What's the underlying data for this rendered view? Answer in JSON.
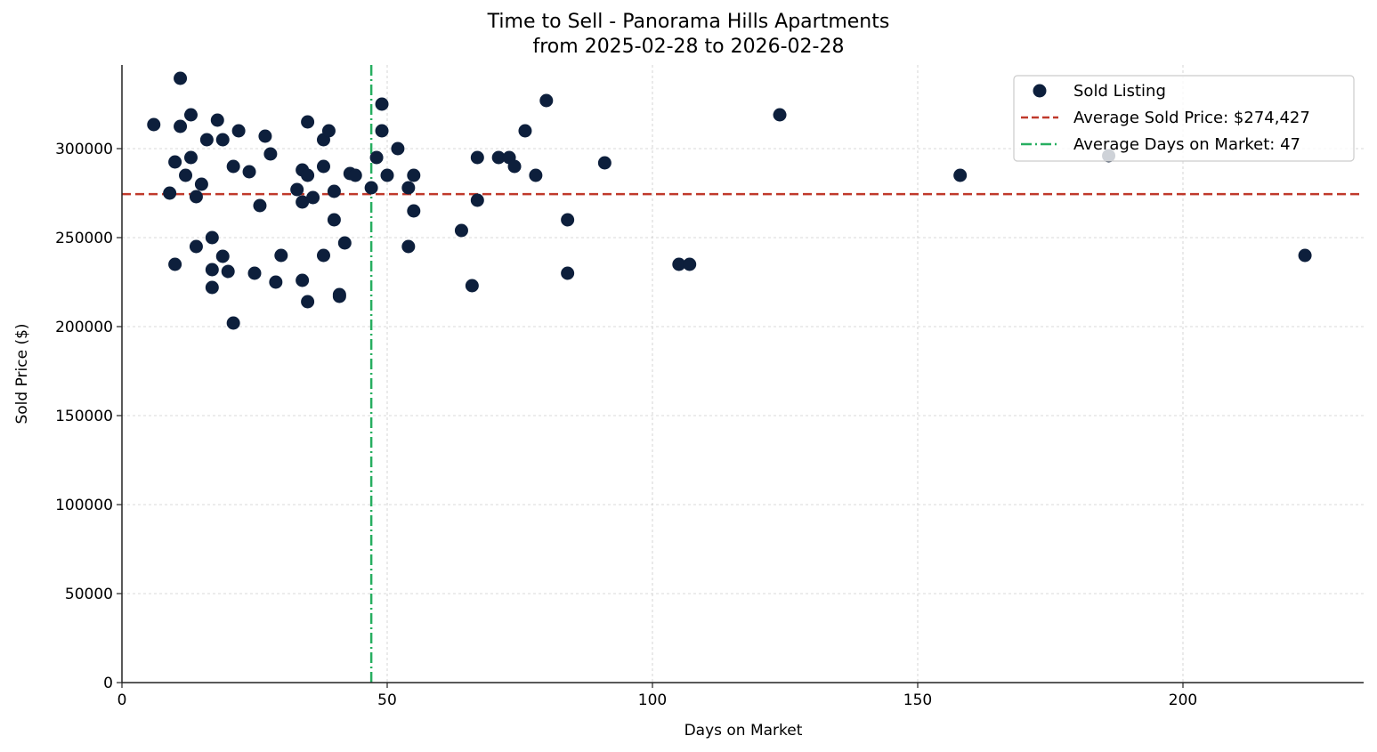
{
  "chart_data": {
    "type": "scatter",
    "title": "Time to Sell - Panorama Hills Apartments",
    "subtitle": "from 2025-02-28 to 2026-02-28",
    "xlabel": "Days on Market",
    "ylabel": "Sold Price ($)",
    "xlim": [
      0,
      234
    ],
    "ylim": [
      0,
      347000
    ],
    "xticks": [
      0,
      50,
      100,
      150,
      200
    ],
    "yticks": [
      0,
      50000,
      100000,
      150000,
      200000,
      250000,
      300000
    ],
    "grid": true,
    "legend_position": "upper right",
    "legend": [
      {
        "label": "Sold Listing",
        "type": "marker",
        "color": "#0d1f3c"
      },
      {
        "label": "Average Sold Price: $274,427",
        "type": "dashed",
        "color": "#c0392b"
      },
      {
        "label": "Average Days on Market: 47",
        "type": "dashdot",
        "color": "#27ae60"
      }
    ],
    "average_price": 274427,
    "average_days": 47,
    "series": [
      {
        "name": "Sold Listing",
        "color": "#0d1f3c",
        "points": [
          [
            6,
            313500
          ],
          [
            9,
            275000
          ],
          [
            10,
            292500
          ],
          [
            10,
            235000
          ],
          [
            11,
            339500
          ],
          [
            11,
            312500
          ],
          [
            12,
            285000
          ],
          [
            13,
            319000
          ],
          [
            13,
            295000
          ],
          [
            14,
            273000
          ],
          [
            14,
            245000
          ],
          [
            15,
            280000
          ],
          [
            16,
            305000
          ],
          [
            17,
            250000
          ],
          [
            17,
            232000
          ],
          [
            17,
            222000
          ],
          [
            18,
            316000
          ],
          [
            19,
            305000
          ],
          [
            19,
            239500
          ],
          [
            20,
            231000
          ],
          [
            21,
            290000
          ],
          [
            21,
            202000
          ],
          [
            22,
            310000
          ],
          [
            24,
            287000
          ],
          [
            25,
            230000
          ],
          [
            26,
            268000
          ],
          [
            27,
            307000
          ],
          [
            28,
            297000
          ],
          [
            29,
            225000
          ],
          [
            30,
            240000
          ],
          [
            33,
            277000
          ],
          [
            34,
            288000
          ],
          [
            34,
            270000
          ],
          [
            34,
            226000
          ],
          [
            35,
            315000
          ],
          [
            35,
            285000
          ],
          [
            35,
            214000
          ],
          [
            36,
            272500
          ],
          [
            38,
            305000
          ],
          [
            38,
            290000
          ],
          [
            38,
            240000
          ],
          [
            39,
            310000
          ],
          [
            40,
            276000
          ],
          [
            40,
            260000
          ],
          [
            41,
            218000
          ],
          [
            41,
            217000
          ],
          [
            42,
            247000
          ],
          [
            43,
            286000
          ],
          [
            44,
            285000
          ],
          [
            47,
            278000
          ],
          [
            48,
            295000
          ],
          [
            49,
            325000
          ],
          [
            49,
            310000
          ],
          [
            50,
            285000
          ],
          [
            52,
            300000
          ],
          [
            54,
            278000
          ],
          [
            54,
            245000
          ],
          [
            55,
            285000
          ],
          [
            55,
            265000
          ],
          [
            64,
            254000
          ],
          [
            66,
            223000
          ],
          [
            67,
            295000
          ],
          [
            67,
            271000
          ],
          [
            71,
            295000
          ],
          [
            73,
            295000
          ],
          [
            74,
            290000
          ],
          [
            76,
            310000
          ],
          [
            78,
            285000
          ],
          [
            80,
            327000
          ],
          [
            84,
            260000
          ],
          [
            84,
            230000
          ],
          [
            91,
            292000
          ],
          [
            105,
            235000
          ],
          [
            107,
            235000
          ],
          [
            124,
            319000
          ],
          [
            158,
            285000
          ],
          [
            186,
            296000
          ],
          [
            223,
            240000
          ]
        ]
      }
    ]
  }
}
